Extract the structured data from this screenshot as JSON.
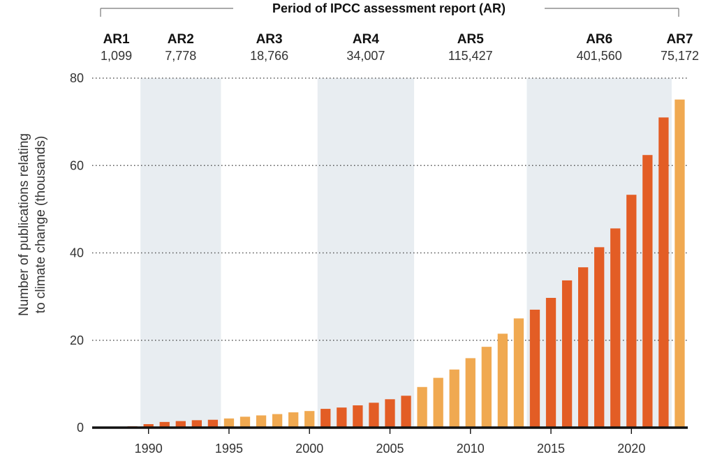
{
  "period_title": "Period of IPCC assessment report (AR)",
  "ylabel_line1": "Number of publications relating",
  "ylabel_line2": "to climate change (thousands)",
  "colors": {
    "light": "#f0a951",
    "dark": "#e35d25",
    "band": "#e8edf1",
    "axis": "#111111",
    "grid": "#555555"
  },
  "periods": [
    {
      "name": "AR1",
      "count": "1,099",
      "start": 1986.5,
      "end": 1989.5,
      "x_label": 1988.0,
      "shaded": false
    },
    {
      "name": "AR2",
      "count": "7,778",
      "start": 1989.5,
      "end": 1994.5,
      "x_label": 1992.0,
      "shaded": true
    },
    {
      "name": "AR3",
      "count": "18,766",
      "start": 1994.5,
      "end": 2000.5,
      "x_label": 1997.5,
      "shaded": false
    },
    {
      "name": "AR4",
      "count": "34,007",
      "start": 2000.5,
      "end": 2006.5,
      "x_label": 2003.5,
      "shaded": true
    },
    {
      "name": "AR5",
      "count": "115,427",
      "start": 2006.5,
      "end": 2013.5,
      "x_label": 2010.0,
      "shaded": false
    },
    {
      "name": "AR6",
      "count": "401,560",
      "start": 2013.5,
      "end": 2022.5,
      "x_label": 2018.0,
      "shaded": true
    },
    {
      "name": "AR7",
      "count": "75,172",
      "start": 2022.5,
      "end": 2023.5,
      "x_label": 2023.0,
      "shaded": false
    }
  ],
  "chart_data": {
    "type": "bar",
    "title": "Period of IPCC assessment report (AR)",
    "xlabel": "",
    "ylabel": "Number of publications relating to climate change (thousands)",
    "ylim": [
      0,
      80
    ],
    "xlim": [
      1986.5,
      2023.5
    ],
    "yticks": [
      0,
      20,
      40,
      60,
      80
    ],
    "xticks": [
      1990,
      1995,
      2000,
      2005,
      2010,
      2015,
      2020
    ],
    "grid": "horizontal dotted",
    "x": [
      1987,
      1988,
      1989,
      1990,
      1991,
      1992,
      1993,
      1994,
      1995,
      1996,
      1997,
      1998,
      1999,
      2000,
      2001,
      2002,
      2003,
      2004,
      2005,
      2006,
      2007,
      2008,
      2009,
      2010,
      2011,
      2012,
      2013,
      2014,
      2015,
      2016,
      2017,
      2018,
      2019,
      2020,
      2021,
      2022,
      2023
    ],
    "values": [
      0.1,
      0.2,
      0.3,
      0.8,
      1.3,
      1.5,
      1.7,
      1.8,
      2.1,
      2.5,
      2.8,
      3.1,
      3.5,
      3.8,
      4.3,
      4.6,
      5.1,
      5.7,
      6.5,
      7.3,
      9.3,
      11.4,
      13.3,
      15.9,
      18.5,
      21.5,
      25.0,
      27.0,
      29.7,
      33.7,
      36.7,
      41.3,
      45.6,
      53.3,
      62.4,
      71.0,
      75.1
    ],
    "ar_period": [
      "AR1",
      "AR1",
      "AR1",
      "AR2",
      "AR2",
      "AR2",
      "AR2",
      "AR2",
      "AR3",
      "AR3",
      "AR3",
      "AR3",
      "AR3",
      "AR3",
      "AR4",
      "AR4",
      "AR4",
      "AR4",
      "AR4",
      "AR4",
      "AR5",
      "AR5",
      "AR5",
      "AR5",
      "AR5",
      "AR5",
      "AR5",
      "AR6",
      "AR6",
      "AR6",
      "AR6",
      "AR6",
      "AR6",
      "AR6",
      "AR6",
      "AR6",
      "AR7"
    ]
  }
}
